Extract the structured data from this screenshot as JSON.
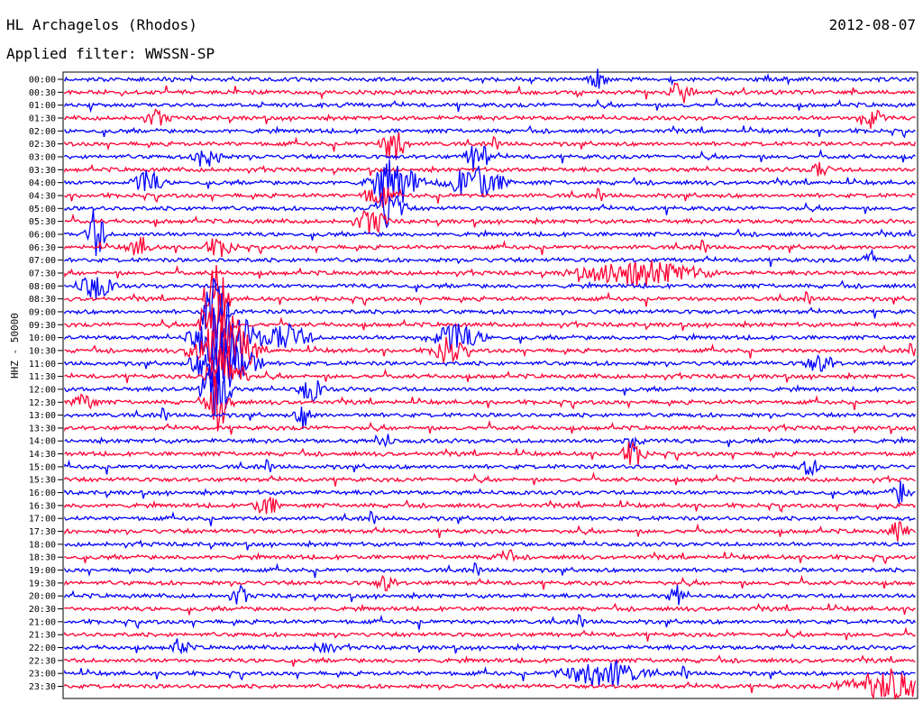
{
  "header": {
    "station": "HL Archagelos (Rhodos)",
    "date": "2012-08-07",
    "filter": "Applied filter: WWSSN-SP"
  },
  "colors": {
    "blue": "#0000ff",
    "red": "#ff0033",
    "axis": "#000000"
  },
  "chart_data": {
    "type": "line",
    "ylabel": "HHZ - 50000",
    "rows": [
      "00:00",
      "00:30",
      "01:00",
      "01:30",
      "02:00",
      "02:30",
      "03:00",
      "03:30",
      "04:00",
      "04:30",
      "05:00",
      "05:30",
      "06:00",
      "06:30",
      "07:00",
      "07:30",
      "08:00",
      "08:30",
      "09:00",
      "09:30",
      "10:00",
      "10:30",
      "11:00",
      "11:30",
      "12:00",
      "12:30",
      "13:00",
      "13:30",
      "14:00",
      "14:30",
      "15:00",
      "15:30",
      "16:00",
      "16:30",
      "17:00",
      "17:30",
      "18:00",
      "18:30",
      "19:00",
      "19:30",
      "20:00",
      "20:30",
      "21:00",
      "21:30",
      "22:00",
      "22:30",
      "23:00",
      "23:30"
    ],
    "series_colors": [
      "blue",
      "red"
    ],
    "x_range_minutes": [
      0,
      30
    ]
  }
}
